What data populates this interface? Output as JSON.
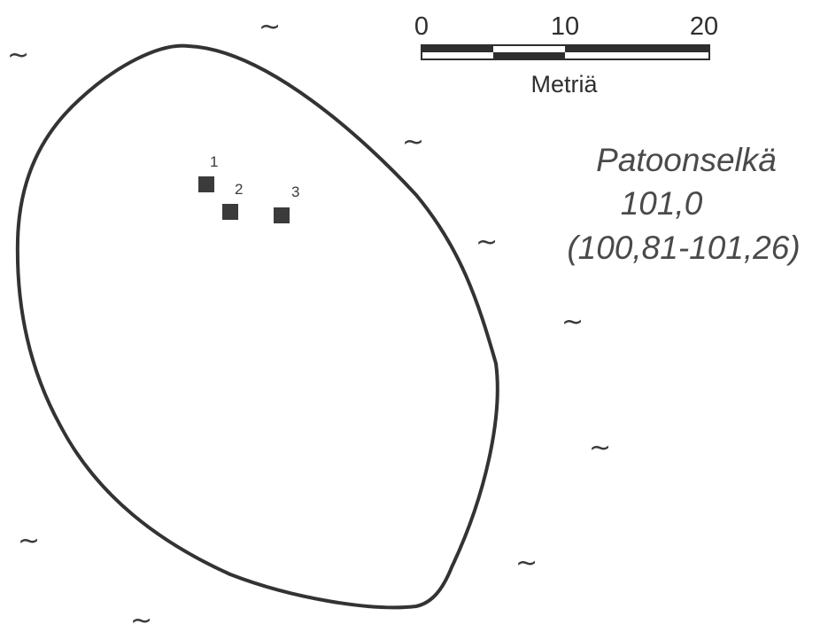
{
  "site": {
    "name": "Patoonselkä",
    "elevation": "101,0",
    "range": "(100,81-101,26)"
  },
  "scale_bar": {
    "ticks": [
      "0",
      "10",
      "20"
    ],
    "unit": "Metriä"
  },
  "markers": [
    {
      "label": "1"
    },
    {
      "label": "2"
    },
    {
      "label": "3"
    }
  ],
  "water_symbol": "~",
  "colors": {
    "outline": "#333333",
    "marker": "#3b3b3b",
    "text": "#3a3a3a"
  }
}
